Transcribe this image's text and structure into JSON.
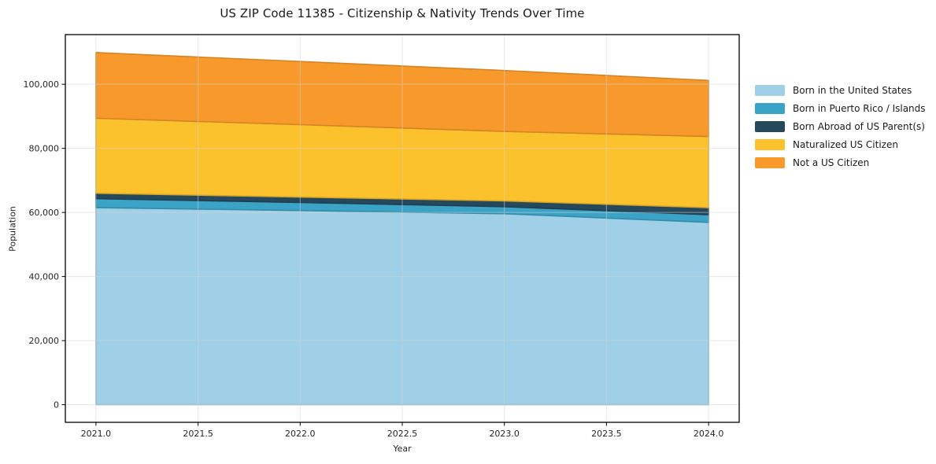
{
  "title": "US ZIP Code 11385 - Citizenship & Nativity Trends Over Time",
  "chart_data": {
    "type": "area",
    "stacked": true,
    "title": "US ZIP Code 11385 - Citizenship & Nativity Trends Over Time",
    "xlabel": "Year",
    "ylabel": "Population",
    "x": [
      2021,
      2022,
      2023,
      2024
    ],
    "series": [
      {
        "name": "Born in the United States",
        "color": "#9fd0e8",
        "values": [
          61500,
          60600,
          59600,
          56900
        ]
      },
      {
        "name": "Born in Puerto Rico / Islands",
        "color": "#3aa3c6",
        "values": [
          2800,
          2500,
          2200,
          2400
        ]
      },
      {
        "name": "Born Abroad of US Parent(s)",
        "color": "#25485d",
        "values": [
          1700,
          1700,
          1800,
          2200
        ]
      },
      {
        "name": "Naturalized US Citizen",
        "color": "#fcc22d",
        "values": [
          23400,
          22600,
          21700,
          22200
        ]
      },
      {
        "name": "Not a US Citizen",
        "color": "#f89a2b",
        "values": [
          20500,
          19700,
          19000,
          17500
        ]
      }
    ],
    "totals": [
      109900,
      107100,
      104300,
      101200
    ],
    "xlim": [
      2020.85,
      2024.15
    ],
    "ylim": [
      -5500,
      115500
    ],
    "xticks": [
      2021.0,
      2021.5,
      2022.0,
      2022.5,
      2023.0,
      2023.5,
      2024.0
    ],
    "xtick_labels": [
      "2021.0",
      "2021.5",
      "2022.0",
      "2022.5",
      "2023.0",
      "2023.5",
      "2024.0"
    ],
    "yticks": [
      0,
      20000,
      40000,
      60000,
      80000,
      100000
    ],
    "ytick_labels": [
      "0",
      "20,000",
      "40,000",
      "60,000",
      "80,000",
      "100,000"
    ],
    "grid": true,
    "grid_color": "#d4d4d4",
    "spine_color": "#000000",
    "tick_label_color": "#262626",
    "legend_position": "right-outside"
  }
}
